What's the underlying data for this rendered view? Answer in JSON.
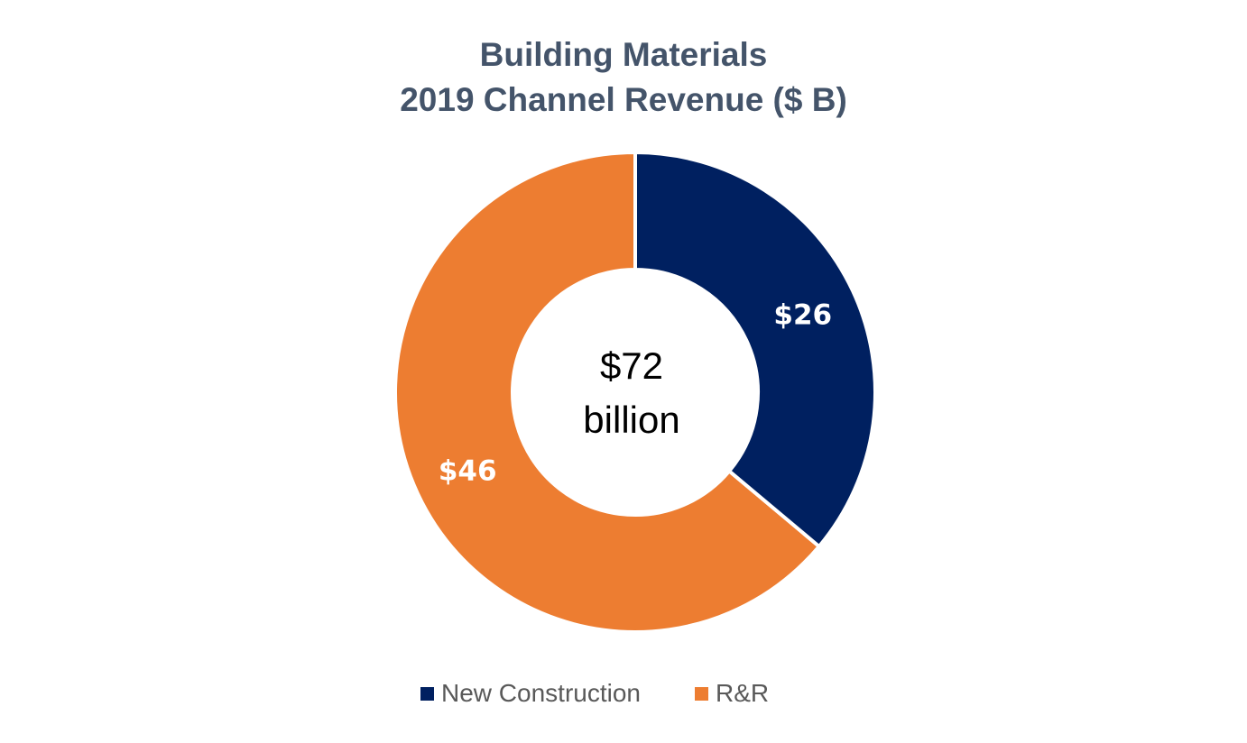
{
  "chart_data": {
    "type": "pie",
    "donut": true,
    "title": "Building Materials",
    "subtitle": "2019 Channel Revenue ($ B)",
    "center_label": {
      "value": "$72",
      "unit": "billion"
    },
    "categories": [
      "New Construction",
      "R&R"
    ],
    "values": [
      26,
      46
    ],
    "data_labels": [
      "$26",
      "$46"
    ],
    "colors": [
      "#002060",
      "#ED7D31"
    ],
    "legend_position": "bottom"
  }
}
